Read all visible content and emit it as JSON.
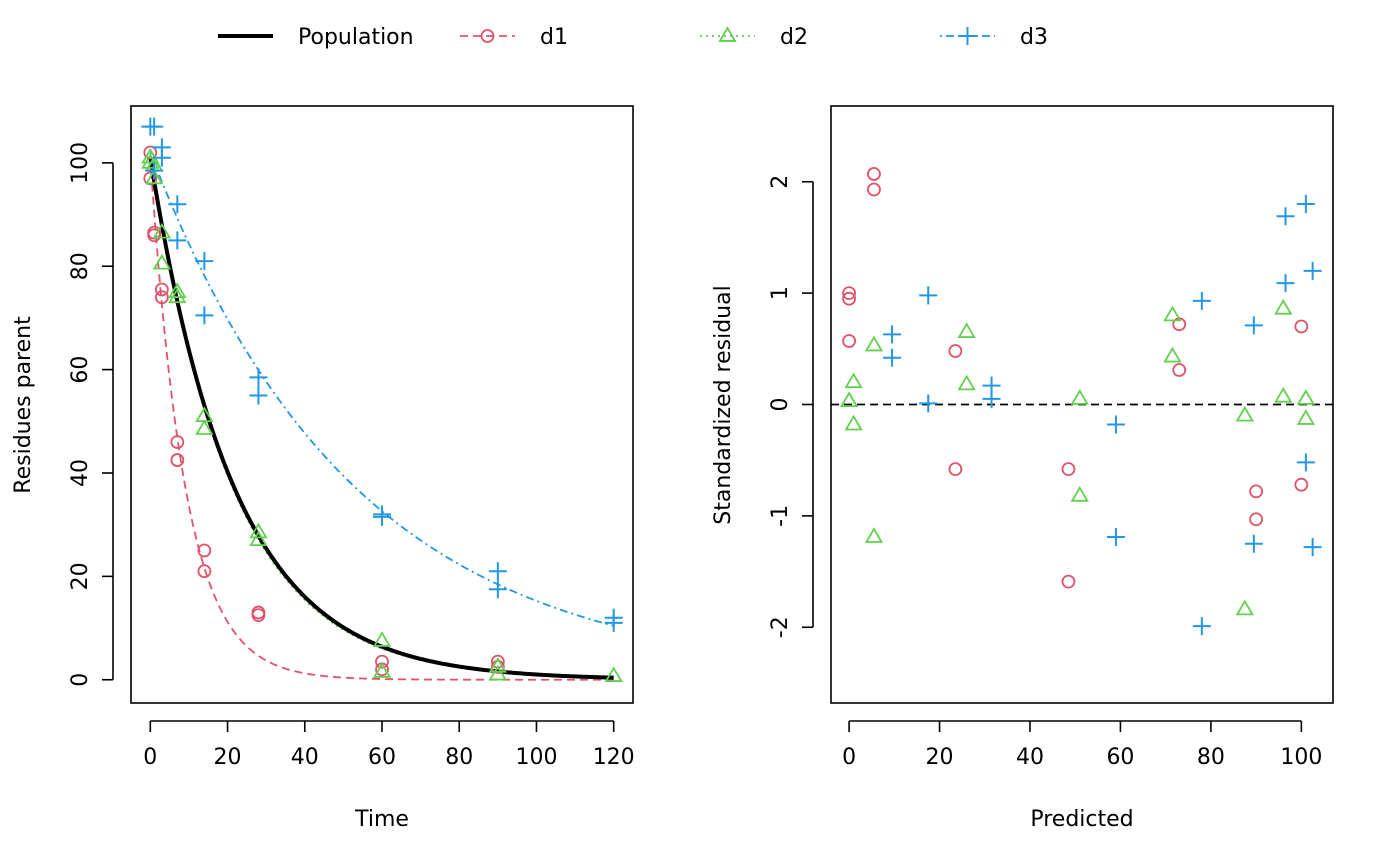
{
  "colors": {
    "population": "#000000",
    "d1": "#DF536B",
    "d2": "#61D04F",
    "d3": "#2297E6"
  },
  "legend": {
    "items": [
      {
        "key": "population",
        "label": "Population",
        "marker": "none",
        "line": "solid"
      },
      {
        "key": "d1",
        "label": "d1",
        "marker": "circle",
        "line": "dashed"
      },
      {
        "key": "d2",
        "label": "d2",
        "marker": "triangle",
        "line": "dotted"
      },
      {
        "key": "d3",
        "label": "d3",
        "marker": "plus",
        "line": "dotdash"
      }
    ]
  },
  "chart_data": [
    {
      "type": "scatter",
      "xlabel": "Time",
      "ylabel": "Residues parent",
      "xlim": [
        -5,
        125
      ],
      "ylim": [
        -4.5,
        111
      ],
      "xticks": [
        0,
        20,
        40,
        60,
        80,
        100,
        120
      ],
      "yticks": [
        0,
        20,
        40,
        60,
        80,
        100
      ],
      "curves": [
        {
          "key": "population",
          "name": "Population",
          "y0": 101,
          "k": 0.046,
          "tmax": 120
        },
        {
          "key": "d1",
          "name": "d1",
          "y0": 101,
          "k": 0.11,
          "tmax": 120
        },
        {
          "key": "d2",
          "name": "d2",
          "y0": 101,
          "k": 0.047,
          "tmax": 120
        },
        {
          "key": "d3",
          "name": "d3",
          "y0": 102,
          "k": 0.019,
          "tmax": 120
        }
      ],
      "series": [
        {
          "key": "d1",
          "name": "d1",
          "points": [
            [
              0,
              102
            ],
            [
              0,
              97
            ],
            [
              1,
              86.5
            ],
            [
              1,
              86
            ],
            [
              3,
              75.5
            ],
            [
              3,
              74
            ],
            [
              7,
              46
            ],
            [
              7,
              42.5
            ],
            [
              14,
              25
            ],
            [
              14,
              21
            ],
            [
              28,
              13
            ],
            [
              28,
              12.5
            ],
            [
              60,
              3.5
            ],
            [
              60,
              2
            ],
            [
              90,
              3.5
            ],
            [
              90,
              2.5
            ]
          ]
        },
        {
          "key": "d2",
          "name": "d2",
          "points": [
            [
              0,
              101
            ],
            [
              0,
              100
            ],
            [
              1,
              99.5
            ],
            [
              1,
              97
            ],
            [
              3,
              80.5
            ],
            [
              3,
              86.5
            ],
            [
              7,
              75
            ],
            [
              7,
              74
            ],
            [
              14,
              51
            ],
            [
              14,
              48.5
            ],
            [
              28,
              28.5
            ],
            [
              28,
              27
            ],
            [
              60,
              7.5
            ],
            [
              60,
              1.5
            ],
            [
              90,
              2.5
            ],
            [
              90,
              1
            ],
            [
              120,
              0.7
            ]
          ]
        },
        {
          "key": "d3",
          "name": "d3",
          "points": [
            [
              0,
              107
            ],
            [
              1,
              107
            ],
            [
              1,
              98.5
            ],
            [
              3,
              103
            ],
            [
              3,
              101
            ],
            [
              7,
              92
            ],
            [
              7,
              85
            ],
            [
              14,
              81
            ],
            [
              14,
              70.5
            ],
            [
              28,
              58.5
            ],
            [
              28,
              55
            ],
            [
              60,
              32
            ],
            [
              60,
              31.5
            ],
            [
              90,
              21
            ],
            [
              90,
              17.5
            ],
            [
              120,
              12
            ],
            [
              120,
              11
            ]
          ]
        }
      ]
    },
    {
      "type": "scatter",
      "xlabel": "Predicted",
      "ylabel": "Standardized residual",
      "xlim": [
        -4,
        107
      ],
      "ylim": [
        -2.68,
        2.68
      ],
      "xticks": [
        0,
        20,
        40,
        60,
        80,
        100
      ],
      "yticks": [
        -2,
        -1,
        0,
        1,
        2
      ],
      "reference_line": 0,
      "series": [
        {
          "key": "d1",
          "name": "d1",
          "points": [
            [
              0,
              1.0
            ],
            [
              0,
              0.95
            ],
            [
              0,
              0.57
            ],
            [
              5.5,
              2.07
            ],
            [
              5.5,
              1.93
            ],
            [
              23.5,
              0.48
            ],
            [
              23.5,
              -0.58
            ],
            [
              48.5,
              -0.58
            ],
            [
              48.5,
              -1.59
            ],
            [
              73,
              0.72
            ],
            [
              73,
              0.31
            ],
            [
              90,
              -0.78
            ],
            [
              90,
              -1.03
            ],
            [
              100,
              0.7
            ],
            [
              100,
              -0.72
            ]
          ]
        },
        {
          "key": "d2",
          "name": "d2",
          "points": [
            [
              0,
              0.03
            ],
            [
              1,
              0.2
            ],
            [
              1,
              -0.18
            ],
            [
              5.5,
              0.53
            ],
            [
              5.5,
              -1.19
            ],
            [
              26,
              0.65
            ],
            [
              26,
              0.18
            ],
            [
              51,
              0.05
            ],
            [
              51,
              -0.82
            ],
            [
              71.5,
              0.8
            ],
            [
              71.5,
              0.43
            ],
            [
              87.5,
              -0.1
            ],
            [
              87.5,
              -1.84
            ],
            [
              96,
              0.86
            ],
            [
              96,
              0.07
            ],
            [
              101,
              0.05
            ],
            [
              101,
              -0.13
            ]
          ]
        },
        {
          "key": "d3",
          "name": "d3",
          "points": [
            [
              9.5,
              0.63
            ],
            [
              9.5,
              0.42
            ],
            [
              17.5,
              0.98
            ],
            [
              17.5,
              0.01
            ],
            [
              31.5,
              0.17
            ],
            [
              31.5,
              0.05
            ],
            [
              59,
              -0.18
            ],
            [
              59,
              -1.19
            ],
            [
              78,
              0.93
            ],
            [
              78,
              -1.99
            ],
            [
              89.5,
              0.71
            ],
            [
              89.5,
              -1.25
            ],
            [
              96.5,
              1.69
            ],
            [
              96.5,
              1.09
            ],
            [
              101,
              1.8
            ],
            [
              101,
              -0.52
            ],
            [
              102.5,
              1.2
            ],
            [
              102.5,
              -1.28
            ]
          ]
        }
      ]
    }
  ]
}
